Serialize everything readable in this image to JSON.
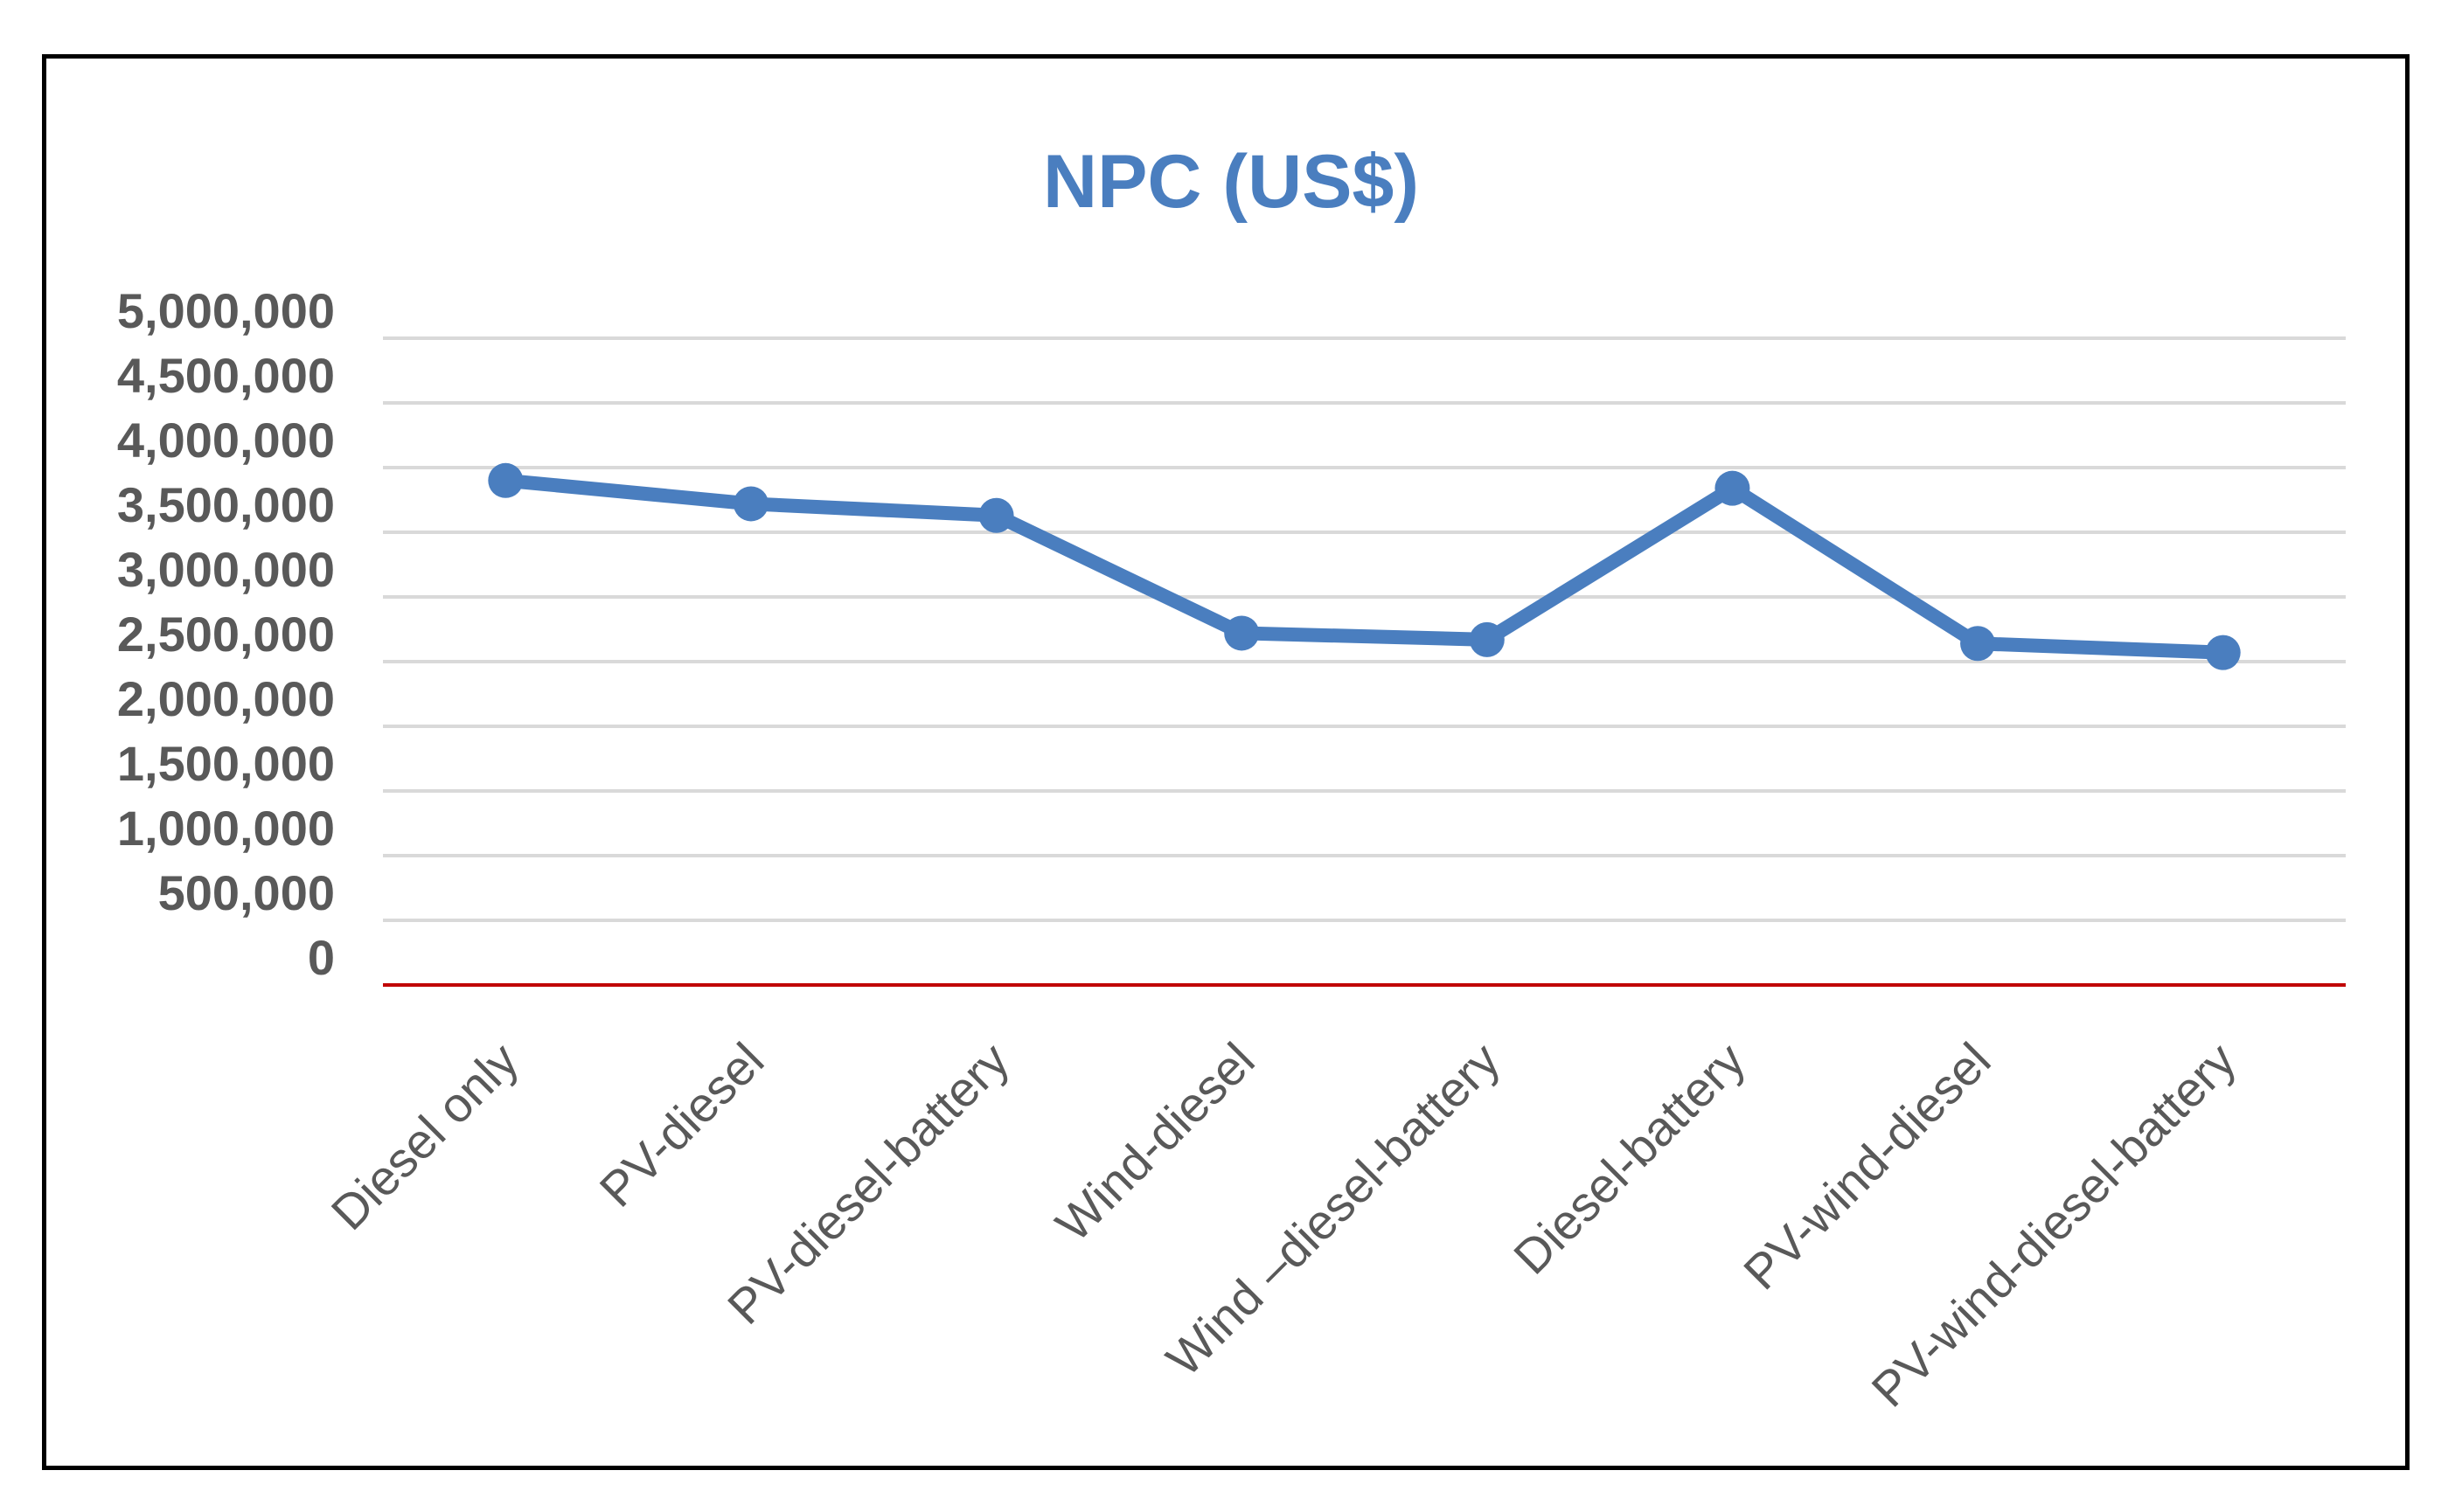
{
  "chart_data": {
    "type": "line",
    "title": "NPC (US$)",
    "xlabel": "",
    "ylabel": "",
    "categories": [
      "Diesel only",
      "PV-diesel",
      "PV-diesel-battery",
      "Wind-diesel",
      "Wind –diesel-battery",
      "Diesel-battery",
      "PV-wind-diesel",
      "PV-wind-diesel-battery"
    ],
    "series": [
      {
        "values": [
          3900000,
          3720000,
          3630000,
          2720000,
          2670000,
          3840000,
          2640000,
          2570000
        ]
      }
    ],
    "ylim": [
      0,
      5000000
    ],
    "yticks": [
      0,
      500000,
      1000000,
      1500000,
      2000000,
      2500000,
      3000000,
      3500000,
      4000000,
      4500000,
      5000000
    ],
    "ytick_labels": [
      "0",
      "500,000",
      "1,000,000",
      "1,500,000",
      "2,000,000",
      "2,500,000",
      "3,000,000",
      "3,500,000",
      "4,000,000",
      "4,500,000",
      "5,000,000"
    ],
    "grid": true,
    "legend": "none",
    "colors": {
      "line": "#4a7ebf",
      "title": "#4a7ebf",
      "axis": "#c00000",
      "grid": "#d9d9d9",
      "ticks": "#595959"
    }
  }
}
